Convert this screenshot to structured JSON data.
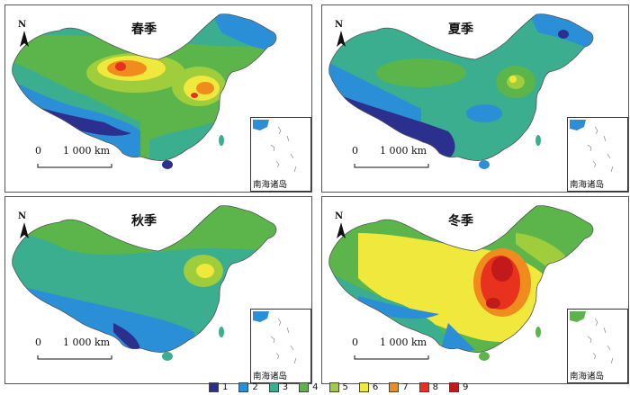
{
  "colors": {
    "c1": "#2b2f8e",
    "c2": "#2b8fd8",
    "c3": "#3aae8e",
    "c4": "#5cb54a",
    "c5": "#9fcd3c",
    "c6": "#f0e83c",
    "c7": "#f08c1e",
    "c8": "#e8321e",
    "c9": "#c21a1a"
  },
  "panels": [
    {
      "id": "spring",
      "season": "春季",
      "north": "N",
      "scale_zero": "0",
      "scale_dist": "1 000 km",
      "inset_label": "南海诸岛"
    },
    {
      "id": "summer",
      "season": "夏季",
      "north": "N",
      "scale_zero": "0",
      "scale_dist": "1 000 km",
      "inset_label": "南海诸岛"
    },
    {
      "id": "autumn",
      "season": "秋季",
      "north": "N",
      "scale_zero": "0",
      "scale_dist": "1 000 km",
      "inset_label": "南海诸岛"
    },
    {
      "id": "winter",
      "season": "冬季",
      "north": "N",
      "scale_zero": "0",
      "scale_dist": "1 000 km",
      "inset_label": "南海诸岛"
    }
  ],
  "legend": [
    {
      "label": "1",
      "color": "#2b2f8e"
    },
    {
      "label": "2",
      "color": "#2b8fd8"
    },
    {
      "label": "3",
      "color": "#3aae8e"
    },
    {
      "label": "4",
      "color": "#5cb54a"
    },
    {
      "label": "5",
      "color": "#9fcd3c"
    },
    {
      "label": "6",
      "color": "#f0e83c"
    },
    {
      "label": "7",
      "color": "#f08c1e"
    },
    {
      "label": "8",
      "color": "#e8321e"
    },
    {
      "label": "9",
      "color": "#c21a1a"
    }
  ]
}
